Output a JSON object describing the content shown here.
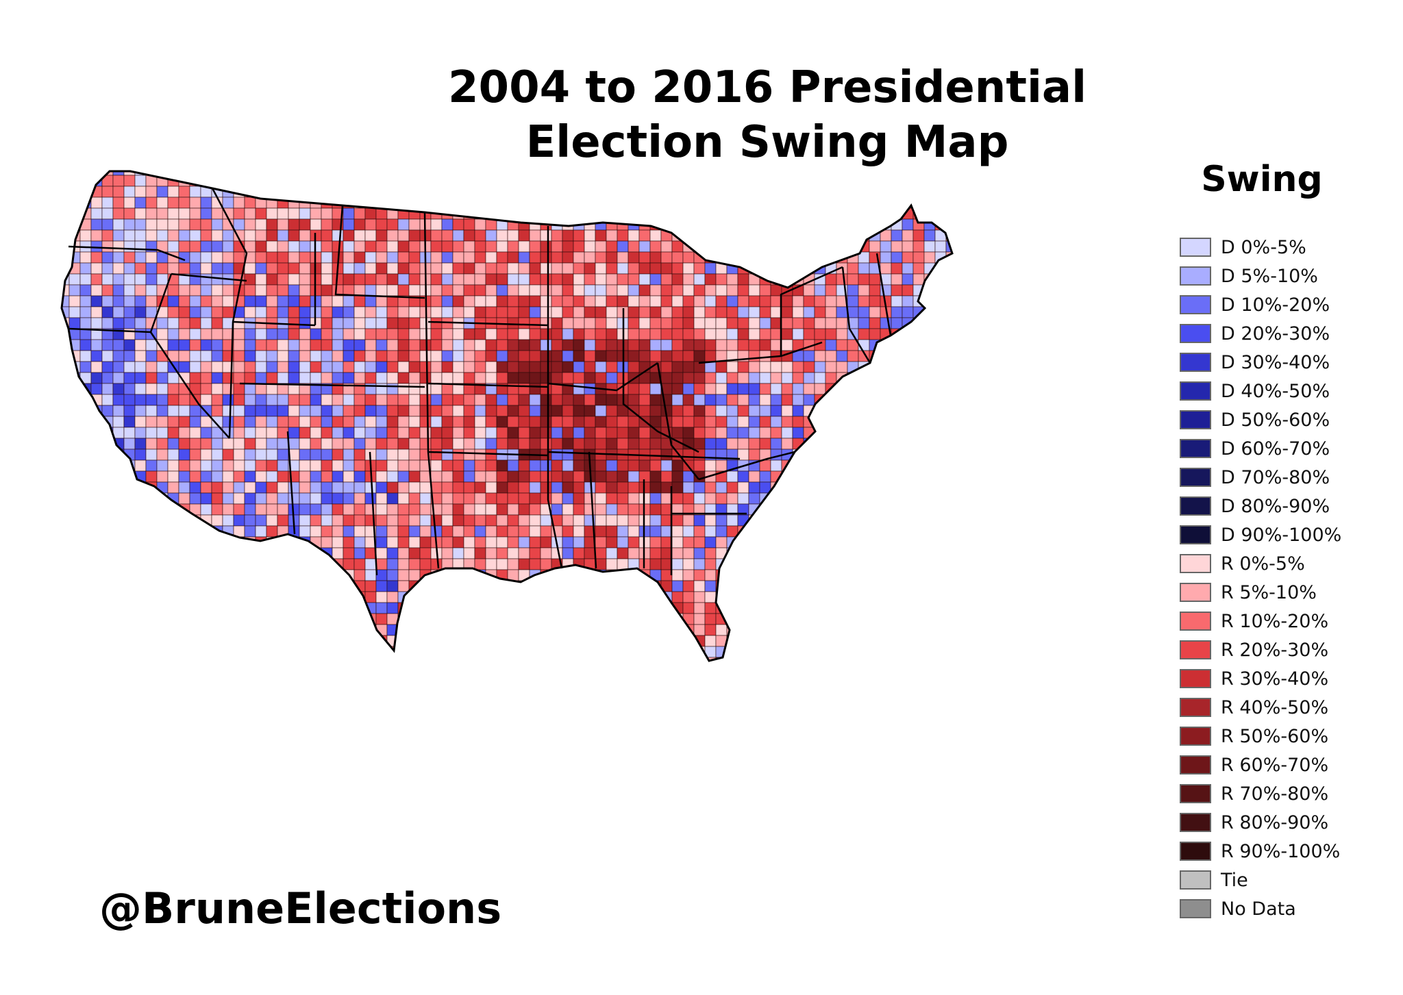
{
  "title": {
    "line1": "2004 to 2016 Presidential",
    "line2": "Election Swing Map"
  },
  "watermark": "@BruneElections",
  "legend": {
    "title": "Swing",
    "items": [
      {
        "label": "D 0%-5%",
        "color": "#d4d6ff"
      },
      {
        "label": "D 5%-10%",
        "color": "#a9adff"
      },
      {
        "label": "D 10%-20%",
        "color": "#6a6ef7"
      },
      {
        "label": "D 20%-30%",
        "color": "#4a4ef0"
      },
      {
        "label": "D 30%-40%",
        "color": "#3437d0"
      },
      {
        "label": "D 40%-50%",
        "color": "#2427ad"
      },
      {
        "label": "D 50%-60%",
        "color": "#1e1f96"
      },
      {
        "label": "D 60%-70%",
        "color": "#191b78"
      },
      {
        "label": "D 70%-80%",
        "color": "#16175c"
      },
      {
        "label": "D 80%-90%",
        "color": "#13134a"
      },
      {
        "label": "D 90%-100%",
        "color": "#0f0f38"
      },
      {
        "label": "R 0%-5%",
        "color": "#ffd6d8"
      },
      {
        "label": "R 5%-10%",
        "color": "#ffaaae"
      },
      {
        "label": "R 10%-20%",
        "color": "#f86a6e"
      },
      {
        "label": "R 20%-30%",
        "color": "#e84448"
      },
      {
        "label": "R 30%-40%",
        "color": "#cc2f33"
      },
      {
        "label": "R 40%-50%",
        "color": "#a8252a"
      },
      {
        "label": "R 50%-60%",
        "color": "#8c1c20"
      },
      {
        "label": "R 60%-70%",
        "color": "#6e1619"
      },
      {
        "label": "R 70%-80%",
        "color": "#561315"
      },
      {
        "label": "R 80%-90%",
        "color": "#421012"
      },
      {
        "label": "R 90%-100%",
        "color": "#2e0c0d"
      },
      {
        "label": "Tie",
        "color": "#c0c0c0"
      },
      {
        "label": "No Data",
        "color": "#8e8e8e"
      }
    ]
  }
}
